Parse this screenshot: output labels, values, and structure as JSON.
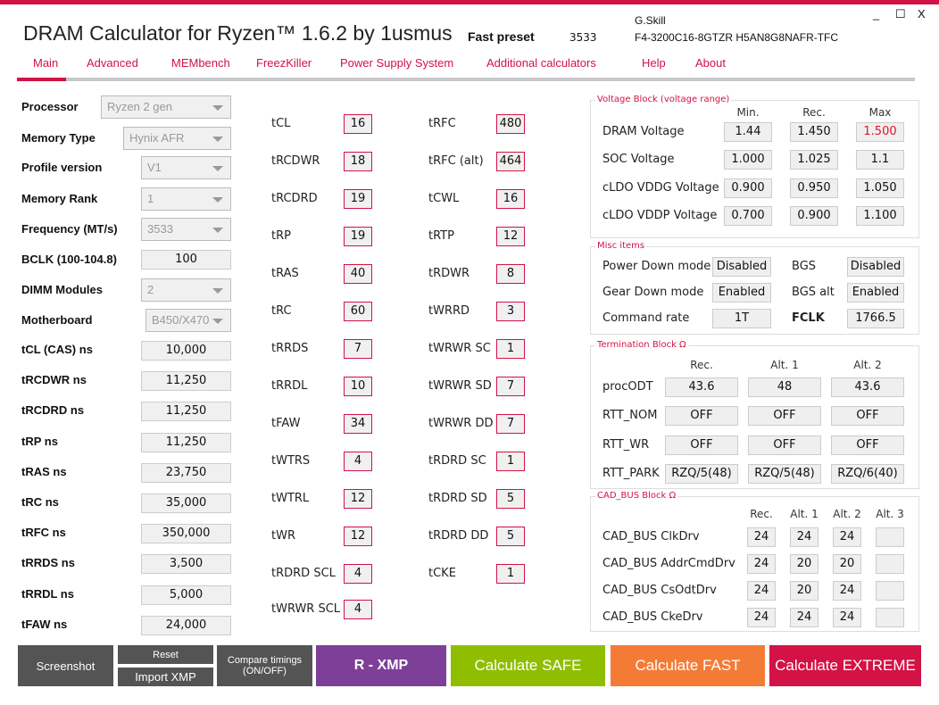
{
  "header": {
    "title": "DRAM Calculator for Ryzen™ 1.6.2 by 1usmus",
    "preset_label": "Fast preset",
    "preset_value": "3533",
    "kit_brand": "G.Skill",
    "kit_model": "F4-3200C16-8GTZR  H5AN8G8NAFR-TFC",
    "minimize": "_",
    "maximize": "☐",
    "close": "X"
  },
  "tabs": [
    "Main",
    "Advanced",
    "MEMbench",
    "FreezKiller",
    "Power Supply System",
    "Additional calculators",
    "Help",
    "About"
  ],
  "left": {
    "selects": [
      {
        "label": "Processor",
        "value": "Ryzen 2 gen"
      },
      {
        "label": "Memory Type",
        "value": "Hynix AFR"
      },
      {
        "label": "Profile version",
        "value": "V1"
      },
      {
        "label": "Memory Rank",
        "value": "1"
      },
      {
        "label": "Frequency (MT/s)",
        "value": "3533"
      }
    ],
    "bclk": {
      "label": "BCLK (100-104.8)",
      "value": "100"
    },
    "dimm": {
      "label": "DIMM Modules",
      "value": "2"
    },
    "mobo": {
      "label": "Motherboard",
      "value": "B450/X470"
    },
    "ns": [
      {
        "label": "tCL (CAS) ns",
        "value": "10,000"
      },
      {
        "label": "tRCDWR ns",
        "value": "11,250"
      },
      {
        "label": "tRCDRD ns",
        "value": "11,250"
      },
      {
        "label": "tRP ns",
        "value": "11,250"
      },
      {
        "label": "tRAS ns",
        "value": "23,750"
      },
      {
        "label": "tRC ns",
        "value": "35,000"
      },
      {
        "label": "tRFC ns",
        "value": "350,000"
      },
      {
        "label": "tRRDS ns",
        "value": "3,500"
      },
      {
        "label": "tRRDL ns",
        "value": "5,000"
      },
      {
        "label": "tFAW ns",
        "value": "24,000"
      }
    ]
  },
  "timings_a": [
    {
      "label": "tCL",
      "value": "16"
    },
    {
      "label": "tRCDWR",
      "value": "18"
    },
    {
      "label": "tRCDRD",
      "value": "19"
    },
    {
      "label": "tRP",
      "value": "19"
    },
    {
      "label": "tRAS",
      "value": "40"
    },
    {
      "label": "tRC",
      "value": "60"
    },
    {
      "label": "tRRDS",
      "value": "7"
    },
    {
      "label": "tRRDL",
      "value": "10"
    },
    {
      "label": "tFAW",
      "value": "34"
    },
    {
      "label": "tWTRS",
      "value": "4"
    },
    {
      "label": "tWTRL",
      "value": "12"
    },
    {
      "label": "tWR",
      "value": "12"
    },
    {
      "label": "tRDRD SCL",
      "value": "4"
    },
    {
      "label": "tWRWR SCL",
      "value": "4"
    }
  ],
  "timings_b": [
    {
      "label": "tRFC",
      "value": "480"
    },
    {
      "label": "tRFC (alt)",
      "value": "464"
    },
    {
      "label": "tCWL",
      "value": "16"
    },
    {
      "label": "tRTP",
      "value": "12"
    },
    {
      "label": "tRDWR",
      "value": "8"
    },
    {
      "label": "tWRRD",
      "value": "3"
    },
    {
      "label": "tWRWR SC",
      "value": "1"
    },
    {
      "label": "tWRWR SD",
      "value": "7"
    },
    {
      "label": "tWRWR DD",
      "value": "7"
    },
    {
      "label": "tRDRD SC",
      "value": "1"
    },
    {
      "label": "tRDRD SD",
      "value": "5"
    },
    {
      "label": "tRDRD DD",
      "value": "5"
    },
    {
      "label": "tCKE",
      "value": "1"
    }
  ],
  "voltage": {
    "title": "Voltage Block (voltage range)",
    "headers": [
      "Min.",
      "Rec.",
      "Max"
    ],
    "rows": [
      {
        "label": "DRAM Voltage",
        "values": [
          "1.44",
          "1.450",
          "1.500"
        ]
      },
      {
        "label": "SOC Voltage",
        "values": [
          "1.000",
          "1.025",
          "1.1"
        ]
      },
      {
        "label": "cLDO VDDG Voltage",
        "values": [
          "0.900",
          "0.950",
          "1.050"
        ]
      },
      {
        "label": "cLDO VDDP Voltage",
        "values": [
          "0.700",
          "0.900",
          "1.100"
        ]
      }
    ],
    "warn_color": "#e8102a"
  },
  "misc": {
    "title": "Misc items",
    "rows": [
      {
        "l1": "Power Down mode",
        "v1": "Disabled",
        "l2": "BGS",
        "v2": "Disabled"
      },
      {
        "l1": "Gear Down mode",
        "v1": "Enabled",
        "l2": "BGS alt",
        "v2": "Enabled"
      },
      {
        "l1": "Command rate",
        "v1": "1T",
        "l2": "FCLK",
        "v2": "1766.5"
      }
    ]
  },
  "termination": {
    "title": "Termination Block Ω",
    "headers": [
      "Rec.",
      "Alt. 1",
      "Alt. 2"
    ],
    "rows": [
      {
        "label": "procODT",
        "values": [
          "43.6",
          "48",
          "43.6"
        ]
      },
      {
        "label": "RTT_NOM",
        "values": [
          "OFF",
          "OFF",
          "OFF"
        ]
      },
      {
        "label": "RTT_WR",
        "values": [
          "OFF",
          "OFF",
          "OFF"
        ]
      },
      {
        "label": "RTT_PARK",
        "values": [
          "RZQ/5(48)",
          "RZQ/5(48)",
          "RZQ/6(40)"
        ]
      }
    ]
  },
  "cadbus": {
    "title": "CAD_BUS Block Ω",
    "headers": [
      "Rec.",
      "Alt. 1",
      "Alt. 2",
      "Alt. 3"
    ],
    "rows": [
      {
        "label": "CAD_BUS ClkDrv",
        "values": [
          "24",
          "24",
          "24",
          ""
        ]
      },
      {
        "label": "CAD_BUS AddrCmdDrv",
        "values": [
          "24",
          "20",
          "20",
          ""
        ]
      },
      {
        "label": "CAD_BUS CsOdtDrv",
        "values": [
          "24",
          "20",
          "24",
          ""
        ]
      },
      {
        "label": "CAD_BUS CkeDrv",
        "values": [
          "24",
          "24",
          "24",
          ""
        ]
      }
    ]
  },
  "buttons": {
    "screenshot": "Screenshot",
    "reset": "Reset",
    "import_xmp": "Import XMP",
    "compare": "Compare timings (ON/OFF)",
    "rxmp": "R - XMP",
    "safe": "Calculate SAFE",
    "fast": "Calculate FAST",
    "extreme": "Calculate EXTREME"
  },
  "colors": {
    "accent": "#d31245",
    "dark_btn": "#545454",
    "rxmp": "#7d3f98",
    "safe": "#8fbe00",
    "fast": "#f47b36",
    "extreme": "#d31245"
  }
}
